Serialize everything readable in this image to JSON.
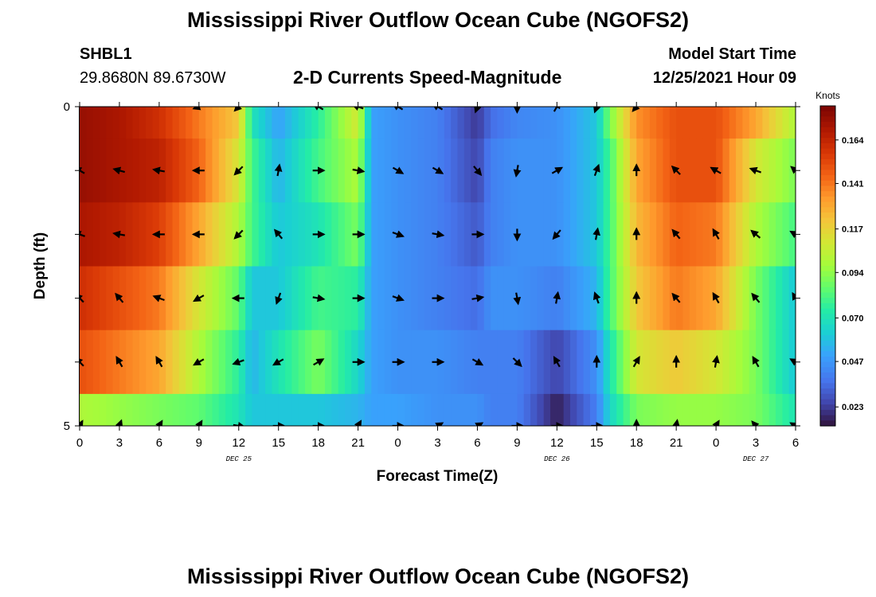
{
  "header": {
    "title": "Mississippi River Outflow Ocean Cube (NGOFS2)",
    "station_id": "SHBL1",
    "station_coords": "29.8680N  89.6730W",
    "subtitle": "2-D Currents Speed-Magnitude",
    "model_start_label": "Model Start Time",
    "model_start_value": "12/25/2021 Hour 09"
  },
  "footer": {
    "title": "Mississippi River Outflow Ocean Cube (NGOFS2)"
  },
  "chart_data": {
    "type": "heatmap",
    "xlabel": "Forecast Time(Z)",
    "ylabel": "Depth (ft)",
    "x_tick_labels": [
      "0",
      "3",
      "6",
      "9",
      "12",
      "15",
      "18",
      "21",
      "0",
      "3",
      "6",
      "9",
      "12",
      "15",
      "18",
      "21",
      "0",
      "3",
      "6"
    ],
    "date_labels": [
      {
        "label": "DEC 25",
        "hour_index": 12
      },
      {
        "label": "DEC 26",
        "hour_index": 36
      },
      {
        "label": "DEC 27",
        "hour_index": 51
      }
    ],
    "y_tick_labels": [
      "0",
      "5"
    ],
    "y_range": [
      0,
      5
    ],
    "x_range_hours": [
      0,
      54
    ],
    "colorbar": {
      "units": "Knots",
      "tick_labels": [
        "0.164",
        "0.141",
        "0.117",
        "0.094",
        "0.070",
        "0.047",
        "0.023"
      ],
      "tick_values": [
        0.164,
        0.141,
        0.117,
        0.094,
        0.07,
        0.047,
        0.023
      ],
      "range": [
        0.013,
        0.182
      ]
    },
    "layer_depths": [
      0,
      1,
      2,
      3,
      4,
      5
    ],
    "time_keypoints": [
      0,
      3,
      6,
      9,
      12,
      13,
      15,
      18,
      21,
      22,
      24,
      27,
      30,
      31,
      33,
      36,
      39,
      40,
      42,
      45,
      48,
      51,
      54
    ],
    "speed_keypoints": [
      [
        0.175,
        0.17,
        0.16,
        0.14,
        0.12,
        0.07,
        0.05,
        0.075,
        0.11,
        0.05,
        0.045,
        0.04,
        0.022,
        0.035,
        0.042,
        0.045,
        0.06,
        0.09,
        0.135,
        0.15,
        0.15,
        0.13,
        0.1
      ],
      [
        0.175,
        0.17,
        0.165,
        0.145,
        0.11,
        0.08,
        0.055,
        0.08,
        0.1,
        0.05,
        0.045,
        0.04,
        0.025,
        0.04,
        0.045,
        0.045,
        0.06,
        0.08,
        0.13,
        0.15,
        0.15,
        0.11,
        0.09
      ],
      [
        0.17,
        0.165,
        0.155,
        0.13,
        0.1,
        0.08,
        0.06,
        0.07,
        0.09,
        0.05,
        0.045,
        0.04,
        0.03,
        0.04,
        0.045,
        0.045,
        0.06,
        0.08,
        0.125,
        0.145,
        0.14,
        0.1,
        0.08
      ],
      [
        0.16,
        0.15,
        0.14,
        0.11,
        0.085,
        0.06,
        0.06,
        0.08,
        0.075,
        0.05,
        0.045,
        0.04,
        0.035,
        0.045,
        0.045,
        0.04,
        0.055,
        0.08,
        0.12,
        0.14,
        0.13,
        0.09,
        0.06
      ],
      [
        0.15,
        0.14,
        0.13,
        0.1,
        0.075,
        0.055,
        0.07,
        0.09,
        0.065,
        0.05,
        0.045,
        0.045,
        0.04,
        0.04,
        0.04,
        0.025,
        0.045,
        0.07,
        0.11,
        0.12,
        0.11,
        0.09,
        0.06
      ],
      [
        0.1,
        0.095,
        0.09,
        0.085,
        0.07,
        0.06,
        0.06,
        0.06,
        0.055,
        0.05,
        0.05,
        0.045,
        0.045,
        0.04,
        0.04,
        0.016,
        0.04,
        0.065,
        0.09,
        0.095,
        0.095,
        0.09,
        0.07
      ]
    ],
    "vector_times": [
      0,
      3,
      6,
      9,
      12,
      15,
      18,
      21,
      24,
      27,
      30,
      33,
      36,
      39,
      42,
      45,
      48,
      51,
      54
    ],
    "vector_rows": [
      {
        "depth": 0,
        "directions": [
          null,
          null,
          null,
          250,
          225,
          null,
          300,
          290,
          300,
          300,
          200,
          180,
          30,
          200,
          220,
          null,
          null,
          null,
          null
        ]
      },
      {
        "depth": 1,
        "directions": [
          300,
          285,
          280,
          270,
          225,
          10,
          90,
          100,
          120,
          120,
          140,
          190,
          60,
          20,
          0,
          315,
          300,
          290,
          310
        ]
      },
      {
        "depth": 2,
        "directions": [
          290,
          280,
          270,
          270,
          225,
          320,
          90,
          90,
          110,
          100,
          90,
          180,
          220,
          10,
          0,
          320,
          330,
          310,
          300
        ]
      },
      {
        "depth": 3,
        "directions": [
          315,
          320,
          290,
          240,
          270,
          200,
          100,
          90,
          110,
          90,
          80,
          170,
          10,
          340,
          0,
          320,
          330,
          320,
          330
        ]
      },
      {
        "depth": 4,
        "directions": [
          315,
          330,
          330,
          240,
          250,
          240,
          60,
          90,
          90,
          90,
          120,
          135,
          330,
          0,
          30,
          0,
          10,
          330,
          300
        ]
      },
      {
        "depth": 5,
        "directions": [
          30,
          20,
          30,
          30,
          100,
          90,
          90,
          30,
          90,
          60,
          60,
          90,
          90,
          90,
          0,
          10,
          30,
          320,
          300
        ]
      }
    ]
  }
}
